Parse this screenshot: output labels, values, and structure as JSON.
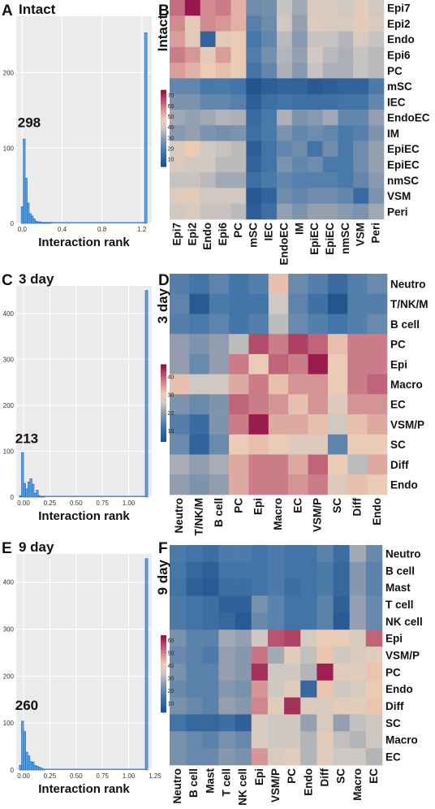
{
  "figure": {
    "panels": [
      {
        "letter": "A",
        "title": "Intact",
        "kind": "histogram",
        "ref": 0
      },
      {
        "letter": "B",
        "title": "Intact",
        "kind": "heatmap",
        "ref": 0
      },
      {
        "letter": "C",
        "title": "3 day",
        "kind": "histogram",
        "ref": 1
      },
      {
        "letter": "D",
        "title": "3 day",
        "kind": "heatmap",
        "ref": 1
      },
      {
        "letter": "E",
        "title": "9 day",
        "kind": "histogram",
        "ref": 2
      },
      {
        "letter": "F",
        "title": "9 day",
        "kind": "heatmap",
        "ref": 2
      }
    ]
  },
  "chart_data": {
    "histograms": [
      {
        "type": "bar",
        "title": "Intact",
        "xlabel": "Interaction rank",
        "ylabel": "",
        "xlim": [
          -0.06,
          1.3
        ],
        "ylim": [
          0,
          275
        ],
        "xticks": [
          "0.0",
          "0.4",
          "0.8",
          "1.2"
        ],
        "xtick_values": [
          0.0,
          0.4,
          0.8,
          1.2
        ],
        "yticks": [
          0,
          100,
          200
        ],
        "annotation": "298",
        "annotation_x": 0.07,
        "annotation_y": 128,
        "bin_width": 0.02,
        "bins_start": [
          -0.01,
          0.01,
          0.03,
          0.05,
          0.07,
          0.09,
          0.11,
          0.13,
          0.15,
          0.17,
          0.19,
          0.21,
          0.23,
          0.25,
          0.27
        ],
        "counts": [
          22,
          112,
          60,
          27,
          13,
          10,
          6,
          3,
          2,
          2,
          1,
          1,
          1,
          1,
          1
        ],
        "baseline_to": 1.24,
        "tall_bar_x": 1.24,
        "tall_bar_value": 253
      },
      {
        "type": "bar",
        "title": "3 day",
        "xlabel": "Interaction rank",
        "ylabel": "",
        "xlim": [
          -0.07,
          1.22
        ],
        "ylim": [
          0,
          460
        ],
        "xticks": [
          "0.00",
          "0.25",
          "0.50",
          "0.75",
          "1.00"
        ],
        "xtick_values": [
          0.0,
          0.25,
          0.5,
          0.75,
          1.0
        ],
        "yticks": [
          0,
          100,
          200,
          300,
          400
        ],
        "annotation": "213",
        "annotation_x": 0.03,
        "annotation_y": 118,
        "bin_width": 0.02,
        "bins_start": [
          -0.04,
          -0.02,
          0.0,
          0.02,
          0.04,
          0.06,
          0.08,
          0.1,
          0.12,
          0.14,
          0.16,
          0.18
        ],
        "counts": [
          3,
          97,
          30,
          18,
          33,
          40,
          28,
          8,
          15,
          3,
          2,
          1
        ],
        "baseline_to": 1.17,
        "tall_bar_x": 1.17,
        "tall_bar_value": 450
      },
      {
        "type": "bar",
        "title": "9 day",
        "xlabel": "Interaction rank",
        "ylabel": "",
        "xlim": [
          -0.07,
          1.22
        ],
        "ylim": [
          0,
          460
        ],
        "xticks": [
          "0.00",
          "0.25",
          "0.50",
          "0.75",
          "1.00",
          "1.25"
        ],
        "xtick_values": [
          0.0,
          0.25,
          0.5,
          0.75,
          1.0,
          1.25
        ],
        "yticks": [
          0,
          100,
          200,
          300,
          400
        ],
        "annotation": "260",
        "annotation_x": 0.03,
        "annotation_y": 128,
        "bin_width": 0.02,
        "bins_start": [
          -0.04,
          -0.02,
          0.0,
          0.02,
          0.04,
          0.06,
          0.08,
          0.1,
          0.12,
          0.14,
          0.16,
          0.18
        ],
        "counts": [
          10,
          104,
          82,
          38,
          30,
          18,
          17,
          10,
          8,
          6,
          4,
          2
        ],
        "baseline_to": 1.17,
        "tall_bar_x": 1.17,
        "tall_bar_value": 450
      }
    ],
    "heatmaps": [
      {
        "type": "heatmap",
        "title": "Intact",
        "rows": [
          "Epi7",
          "Epi2",
          "Endo",
          "Epi6",
          "PC",
          "mSC",
          "IEC",
          "EndoEC",
          "IM",
          "EpiEC",
          "EpiEC",
          "nmSC",
          "VSM",
          "Peri"
        ],
        "cols": [
          "Epi7",
          "Epi2",
          "Endo",
          "Epi6",
          "PC",
          "mSC",
          "IEC",
          "EndoEC",
          "IM",
          "EpiEC",
          "EpiEC",
          "nmSC",
          "VSM",
          "Peri"
        ],
        "colorbar_ticks": [
          10,
          20,
          30,
          40,
          50,
          60,
          70
        ],
        "vmin": 3,
        "vmax": 75,
        "values": [
          [
            62,
            74,
            58,
            60,
            52,
            24,
            25,
            38,
            32,
            42,
            42,
            40,
            45,
            40
          ],
          [
            58,
            45,
            58,
            56,
            52,
            20,
            24,
            40,
            30,
            44,
            42,
            42,
            45,
            42
          ],
          [
            55,
            44,
            10,
            45,
            46,
            17,
            22,
            36,
            28,
            38,
            38,
            35,
            42,
            38
          ],
          [
            60,
            56,
            45,
            55,
            48,
            19,
            25,
            35,
            30,
            40,
            36,
            34,
            38,
            36
          ],
          [
            55,
            52,
            48,
            50,
            46,
            16,
            22,
            34,
            28,
            38,
            34,
            34,
            38,
            36
          ],
          [
            22,
            22,
            17,
            18,
            16,
            4,
            8,
            10,
            10,
            6,
            8,
            10,
            10,
            18
          ],
          [
            26,
            26,
            22,
            22,
            20,
            8,
            14,
            16,
            14,
            14,
            14,
            16,
            16,
            22
          ],
          [
            32,
            30,
            32,
            35,
            34,
            12,
            18,
            34,
            26,
            28,
            32,
            22,
            22,
            30
          ],
          [
            28,
            30,
            26,
            25,
            26,
            14,
            18,
            26,
            22,
            24,
            22,
            18,
            20,
            26
          ],
          [
            42,
            48,
            40,
            38,
            36,
            8,
            16,
            22,
            24,
            16,
            24,
            18,
            24,
            30
          ],
          [
            42,
            40,
            40,
            36,
            36,
            10,
            16,
            26,
            22,
            24,
            18,
            18,
            24,
            30
          ],
          [
            38,
            38,
            36,
            32,
            32,
            14,
            18,
            22,
            20,
            20,
            20,
            18,
            22,
            28
          ],
          [
            44,
            44,
            40,
            40,
            40,
            6,
            10,
            24,
            22,
            24,
            24,
            22,
            12,
            26
          ],
          [
            40,
            42,
            38,
            38,
            36,
            8,
            14,
            30,
            26,
            30,
            30,
            28,
            26,
            32
          ]
        ]
      },
      {
        "type": "heatmap",
        "title": "3 day",
        "rows": [
          "Neutro",
          "T/NK/M",
          "B cell",
          "PC",
          "Epi",
          "Macro",
          "EC",
          "VSM/P",
          "SC",
          "Diff",
          "Endo"
        ],
        "cols": [
          "Neutro",
          "T/NK/M",
          "B cell",
          "PC",
          "Epi",
          "Macro",
          "EC",
          "VSM/P",
          "SC",
          "Diff",
          "Endo"
        ],
        "colorbar_ticks": [
          10,
          20,
          30,
          40
        ],
        "vmin": 4,
        "vmax": 47,
        "values": [
          [
            14,
            12,
            15,
            12,
            14,
            32,
            16,
            14,
            10,
            14,
            16
          ],
          [
            15,
            6,
            13,
            12,
            12,
            26,
            15,
            11,
            5,
            14,
            14
          ],
          [
            14,
            13,
            15,
            12,
            14,
            24,
            16,
            14,
            12,
            14,
            16
          ],
          [
            20,
            18,
            20,
            24,
            42,
            38,
            43,
            40,
            32,
            38,
            38
          ],
          [
            20,
            16,
            20,
            38,
            30,
            40,
            38,
            46,
            30,
            38,
            38
          ],
          [
            32,
            26,
            26,
            34,
            38,
            32,
            36,
            36,
            30,
            38,
            40
          ],
          [
            18,
            16,
            18,
            40,
            38,
            36,
            32,
            36,
            28,
            36,
            36
          ],
          [
            14,
            10,
            18,
            38,
            46,
            34,
            34,
            32,
            26,
            32,
            34
          ],
          [
            16,
            8,
            16,
            30,
            32,
            30,
            28,
            28,
            15,
            30,
            30
          ],
          [
            22,
            20,
            22,
            34,
            38,
            38,
            34,
            40,
            30,
            24,
            34
          ],
          [
            20,
            18,
            20,
            34,
            38,
            38,
            36,
            38,
            28,
            32,
            30
          ]
        ]
      },
      {
        "type": "heatmap",
        "title": "9 day",
        "rows": [
          "Neutro",
          "B cell",
          "Mast",
          "T cell",
          "NK cell",
          "Epi",
          "VSM/P",
          "PC",
          "Endo",
          "Diff",
          "SC",
          "Macro",
          "EC"
        ],
        "cols": [
          "Neutro",
          "B cell",
          "Mast",
          "T cell",
          "NK cell",
          "Epi",
          "VSM/P",
          "PC",
          "Endo",
          "Diff",
          "SC",
          "Macro",
          "EC"
        ],
        "colorbar_ticks": [
          10,
          20,
          30,
          40,
          50,
          60
        ],
        "vmin": 3,
        "vmax": 64,
        "values": [
          [
            16,
            14,
            12,
            16,
            16,
            14,
            16,
            14,
            14,
            18,
            12,
            28,
            20
          ],
          [
            15,
            10,
            8,
            14,
            14,
            14,
            16,
            14,
            14,
            16,
            10,
            24,
            18
          ],
          [
            14,
            8,
            6,
            12,
            12,
            14,
            16,
            12,
            14,
            16,
            10,
            24,
            18
          ],
          [
            16,
            14,
            12,
            8,
            8,
            22,
            18,
            14,
            14,
            18,
            8,
            26,
            20
          ],
          [
            16,
            14,
            12,
            10,
            6,
            20,
            18,
            14,
            14,
            18,
            6,
            26,
            20
          ],
          [
            22,
            18,
            18,
            28,
            26,
            34,
            56,
            58,
            36,
            40,
            40,
            36,
            54
          ],
          [
            20,
            18,
            16,
            26,
            24,
            52,
            28,
            38,
            32,
            42,
            34,
            36,
            38
          ],
          [
            22,
            18,
            18,
            26,
            24,
            60,
            34,
            34,
            30,
            62,
            38,
            38,
            42
          ],
          [
            20,
            18,
            18,
            24,
            22,
            48,
            34,
            38,
            10,
            42,
            34,
            36,
            40
          ],
          [
            22,
            20,
            18,
            26,
            24,
            50,
            38,
            60,
            36,
            36,
            38,
            38,
            42
          ],
          [
            14,
            10,
            10,
            12,
            8,
            36,
            34,
            34,
            26,
            36,
            26,
            32,
            34
          ],
          [
            22,
            20,
            18,
            22,
            20,
            36,
            34,
            34,
            30,
            38,
            32,
            30,
            34
          ],
          [
            22,
            20,
            20,
            24,
            22,
            48,
            36,
            38,
            30,
            38,
            34,
            34,
            30
          ]
        ]
      }
    ]
  }
}
